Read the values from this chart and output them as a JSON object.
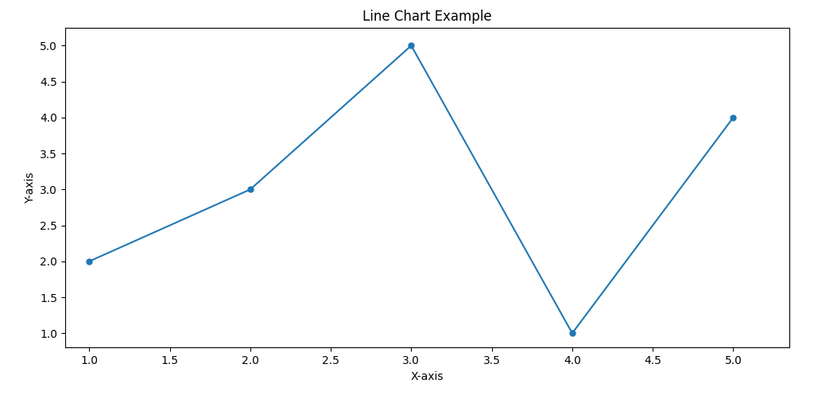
{
  "x": [
    1,
    2,
    3,
    4,
    5
  ],
  "y": [
    2,
    3,
    5,
    1,
    4
  ],
  "title": "Line Chart Example",
  "xlabel": "X-axis",
  "ylabel": "Y-axis",
  "line_color": "#1f77b4",
  "marker": "o",
  "xlim": [
    0.85,
    5.35
  ],
  "ylim": [
    0.8,
    5.25
  ],
  "background_color": "#ffffff",
  "figsize": [
    10.24,
    4.97
  ],
  "dpi": 100
}
